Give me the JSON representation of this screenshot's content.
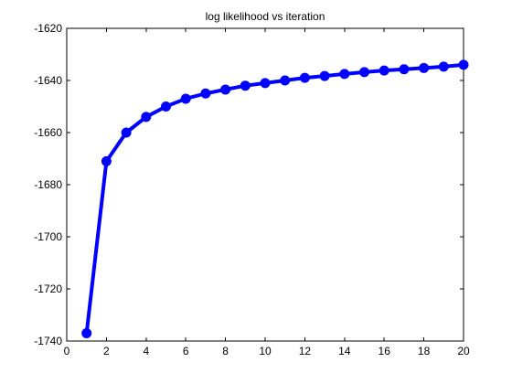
{
  "chart_data": {
    "type": "line",
    "title": "log likelihood vs iteration",
    "xlabel": "",
    "ylabel": "",
    "xlim": [
      0,
      20
    ],
    "ylim": [
      -1740,
      -1620
    ],
    "grid": false,
    "legend": "none",
    "xticks": [
      "0",
      "2",
      "4",
      "6",
      "8",
      "10",
      "12",
      "14",
      "16",
      "18",
      "20"
    ],
    "yticks": [
      "-1620",
      "-1640",
      "-1660",
      "-1680",
      "-1700",
      "-1720",
      "-1740"
    ],
    "series": [
      {
        "color": "#0000ff",
        "marker": "circle",
        "x": [
          1,
          2,
          3,
          4,
          5,
          6,
          7,
          8,
          9,
          10,
          11,
          12,
          13,
          14,
          15,
          16,
          17,
          18,
          19,
          20
        ],
        "y": [
          -1737,
          -1671,
          -1660,
          -1654,
          -1650,
          -1647,
          -1645,
          -1643.5,
          -1642,
          -1641,
          -1640,
          -1639,
          -1638.3,
          -1637.5,
          -1636.8,
          -1636.2,
          -1635.7,
          -1635.2,
          -1634.7,
          -1634
        ]
      }
    ]
  }
}
